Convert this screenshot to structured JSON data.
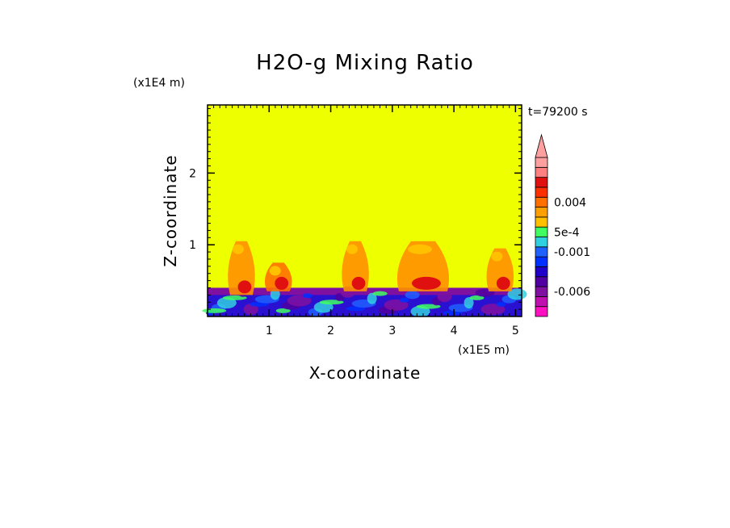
{
  "chart_data": {
    "type": "heatmap",
    "title": "H2O-g Mixing Ratio",
    "xlabel": "X-coordinate",
    "ylabel": "Z-coordinate",
    "x_scale_label": "(x1E5 m)",
    "y_scale_label": "(x1E4 m)",
    "time_label": "t=79200 s",
    "xlim": [
      0,
      5.1
    ],
    "ylim": [
      0,
      2.95
    ],
    "x_ticks": [
      {
        "value": 1,
        "label": "1"
      },
      {
        "value": 2,
        "label": "2"
      },
      {
        "value": 3,
        "label": "3"
      },
      {
        "value": 4,
        "label": "4"
      },
      {
        "value": 5,
        "label": "5"
      }
    ],
    "y_ticks": [
      {
        "value": 1,
        "label": "1"
      },
      {
        "value": 2,
        "label": "2"
      }
    ],
    "background_color": "#eeff00",
    "colorbar": {
      "colors": [
        "#ff10c0",
        "#c010b0",
        "#8010a0",
        "#5000a0",
        "#2000c8",
        "#0030ff",
        "#2060ff",
        "#30d0e0",
        "#40ff60",
        "#ffc000",
        "#ffa000",
        "#ff7000",
        "#ff3000",
        "#e01010",
        "#ff8080",
        "#ffa0a0"
      ],
      "labels": [
        {
          "level": 2.5,
          "text": "-0.006"
        },
        {
          "level": 6.5,
          "text": "-0.001"
        },
        {
          "level": 8.5,
          "text": "5e-4"
        },
        {
          "level": 11.5,
          "text": "0.004"
        }
      ]
    },
    "bands": [
      {
        "name": "surface-layer",
        "color": "#2a10d0",
        "x": [
          0,
          5.1
        ],
        "z": [
          0,
          0.4
        ]
      },
      {
        "name": "surface-layer-top",
        "color": "#8010a0",
        "x": [
          0,
          5.1
        ],
        "z": [
          0.3,
          0.4
        ]
      }
    ],
    "plumes": [
      {
        "x": 0.55,
        "z": [
          0.3,
          1.05
        ],
        "color": "#ff9000"
      },
      {
        "x": 1.15,
        "z": [
          0.35,
          0.75
        ],
        "color": "#ff7000"
      },
      {
        "x": 2.4,
        "z": [
          0.35,
          1.05
        ],
        "color": "#ff9000"
      },
      {
        "x": 3.5,
        "z": [
          0.35,
          1.05
        ],
        "color": "#ff9000"
      },
      {
        "x": 4.75,
        "z": [
          0.35,
          0.95
        ],
        "color": "#ff9000"
      }
    ]
  }
}
